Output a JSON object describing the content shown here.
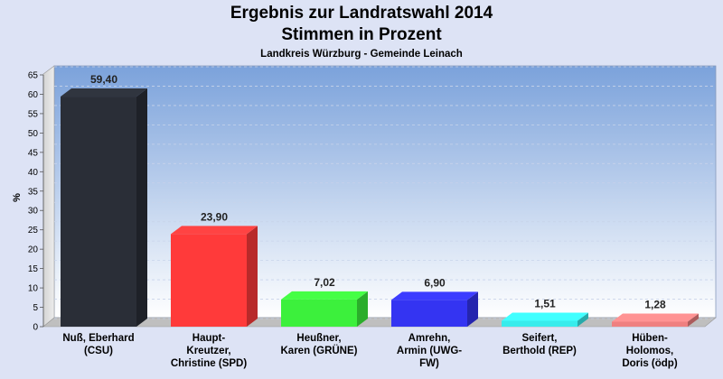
{
  "chart_data": {
    "type": "bar",
    "title": "Ergebnis zur Landratswahl 2014",
    "subtitle": "Stimmen in Prozent",
    "caption": "Landkreis Würzburg - Gemeinde Leinach",
    "ylabel": "%",
    "xlabel": "",
    "ylim": [
      0,
      65
    ],
    "yticks": [
      0,
      5,
      10,
      15,
      20,
      25,
      30,
      35,
      40,
      45,
      50,
      55,
      60,
      65
    ],
    "grid": true,
    "categories": [
      [
        "Nuß, Eberhard",
        "(CSU)"
      ],
      [
        "Haupt-",
        "Kreutzer,",
        "Christine (SPD)"
      ],
      [
        "Heußner,",
        "Karen (GRÜNE)"
      ],
      [
        "Amrehn,",
        "Armin (UWG-",
        "FW)"
      ],
      [
        "Seifert,",
        "Berthold (REP)"
      ],
      [
        "Hüben-",
        "Holomos,",
        "Doris (ödp)"
      ]
    ],
    "values": [
      59.4,
      23.9,
      7.02,
      6.9,
      1.51,
      1.28
    ],
    "value_labels": [
      "59,40",
      "23,90",
      "7,02",
      "6,90",
      "1,51",
      "1,28"
    ],
    "colors": [
      "#2a2e37",
      "#ff3a3a",
      "#3cf03c",
      "#3434f2",
      "#38ecec",
      "#ef8080"
    ]
  }
}
